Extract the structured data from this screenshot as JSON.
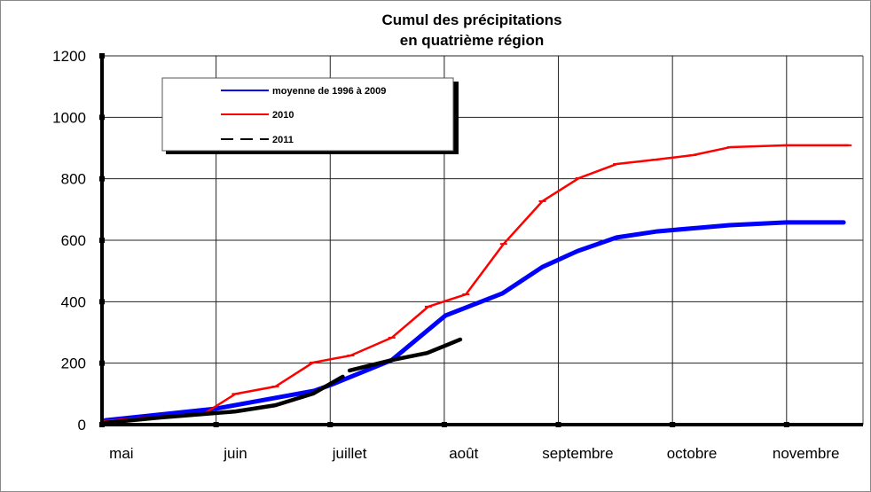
{
  "chart_data": {
    "type": "line",
    "title": [
      "Cumul des précipitations",
      "en quatrième région"
    ],
    "xlabel": "",
    "ylabel": "",
    "x_unit": "months since start of mai",
    "xlim": [
      0,
      6.67
    ],
    "ylim": [
      0,
      1200
    ],
    "yticks": [
      0,
      200,
      400,
      600,
      800,
      1000,
      1200
    ],
    "xtick_labels": [
      "mai",
      "juin",
      "juillet",
      "août",
      "septembre",
      "octobre",
      "novembre"
    ],
    "grid": true,
    "legend_position": "top-left",
    "series": [
      {
        "name": "moyenne de  1996 à 2009",
        "color": "#0000ff",
        "style": "solid-thick",
        "x": [
          0.03,
          1.0,
          1.52,
          1.86,
          2.01,
          2.54,
          3.01,
          3.51,
          3.86,
          4.17,
          4.51,
          4.87,
          5.5,
          6.0,
          6.5
        ],
        "y": [
          14,
          52,
          87,
          110,
          130,
          210,
          355,
          427,
          513,
          565,
          609,
          629,
          649,
          658,
          658
        ]
      },
      {
        "name": "2010",
        "color": "#ff0000",
        "style": "solid",
        "x": [
          0.03,
          0.9,
          1.17,
          1.52,
          1.85,
          2.18,
          2.54,
          2.86,
          3.19,
          3.52,
          3.86,
          4.18,
          4.51,
          4.85,
          5.18,
          5.51,
          6.0,
          6.54
        ],
        "y": [
          12,
          37,
          100,
          124,
          202,
          225,
          283,
          384,
          424,
          588,
          727,
          802,
          848,
          862,
          877,
          903,
          909,
          909
        ]
      },
      {
        "name": "2011",
        "color": "#000000",
        "style": "dashed",
        "x": [
          0.03,
          0.51,
          0.98,
          1.17,
          1.52,
          1.85,
          2.11,
          null,
          2.17,
          2.54,
          2.85,
          3.14
        ],
        "y": [
          6,
          23,
          37,
          43,
          63,
          101,
          156,
          null,
          176,
          210,
          233,
          277
        ]
      }
    ]
  }
}
